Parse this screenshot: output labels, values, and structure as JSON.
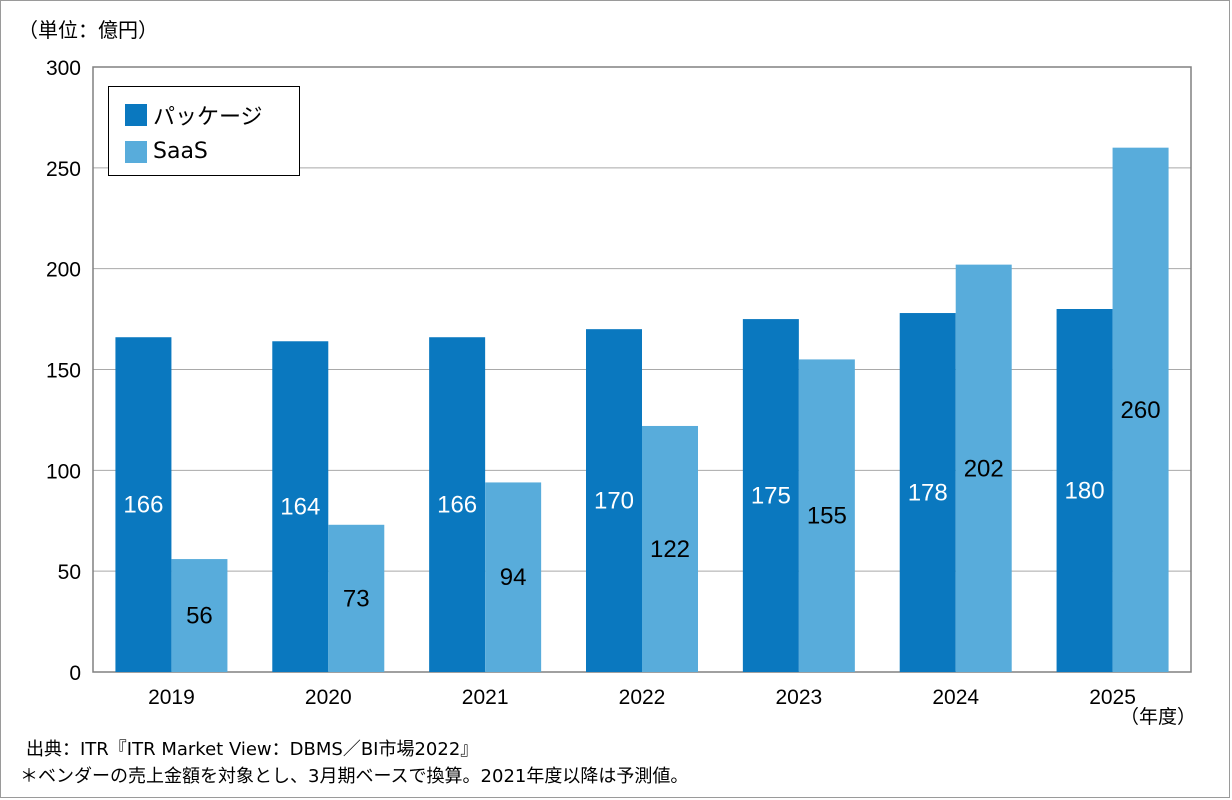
{
  "unit_label": "（単位：億円）",
  "year_unit": "（年度）",
  "source_note": "出典：ITR『ITR Market View：DBMS／BI市場2022』",
  "footnote": "＊ベンダーの売上金額を対象とし、3月期ベースで換算。2021年度以降は予測値。",
  "colors": {
    "package": "#0a78bf",
    "saas": "#58acdb",
    "grid": "#a9a9a9",
    "axis": "#808080"
  },
  "chart_data": {
    "type": "bar",
    "title": "",
    "xlabel": "",
    "ylabel": "",
    "ylim": [
      0,
      300
    ],
    "yticks": [
      0,
      50,
      100,
      150,
      200,
      250,
      300
    ],
    "grid": true,
    "legend_position": "top-left",
    "categories": [
      "2019",
      "2020",
      "2021",
      "2022",
      "2023",
      "2024",
      "2025"
    ],
    "series": [
      {
        "name": "パッケージ",
        "values": [
          166,
          164,
          166,
          170,
          175,
          178,
          180
        ],
        "labels": [
          "166",
          "164",
          "166",
          "170",
          "175",
          "178",
          "180"
        ]
      },
      {
        "name": "SaaS",
        "values": [
          56,
          73,
          94,
          122,
          155,
          202,
          260
        ],
        "labels": [
          "56",
          "73",
          "94",
          "122",
          "155",
          "202",
          "260"
        ]
      }
    ]
  }
}
